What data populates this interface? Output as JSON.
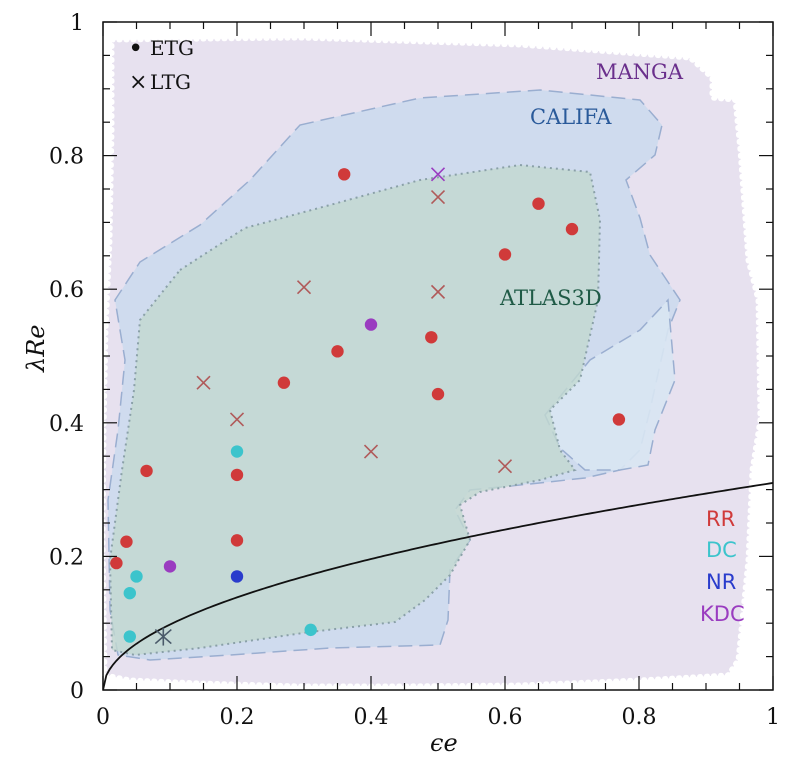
{
  "chart_data": {
    "type": "scatter",
    "title": "",
    "xlabel": "ϵe",
    "ylabel": "λRe",
    "xlim": [
      0,
      1
    ],
    "ylim": [
      0,
      1
    ],
    "x_ticks": [
      "0",
      "0.2",
      "0.4",
      "0.6",
      "0.8",
      "1"
    ],
    "y_ticks": [
      "0",
      "0.2",
      "0.4",
      "0.6",
      "0.8",
      "1"
    ],
    "colors": {
      "RR": "#d03a3a",
      "DC": "#3cc4cc",
      "NR": "#2a3ccc",
      "KDC": "#9a3cc0",
      "LTG": "#b05a5a",
      "curve": "#111111"
    },
    "regions": [
      {
        "name": "MANGA",
        "color": "#6a2f8c",
        "fill": "#e3dcec"
      },
      {
        "name": "CALIFA",
        "color": "#2a5a9a",
        "fill": "#c9d9ee"
      },
      {
        "name": "ATLAS3D",
        "color": "#1f5a46",
        "fill": "#c2d8d0"
      }
    ],
    "legend_shape": [
      {
        "marker": "•",
        "label": "ETG"
      },
      {
        "marker": "×",
        "label": "LTG"
      }
    ],
    "legend_kinematic": [
      "RR",
      "DC",
      "NR",
      "KDC"
    ],
    "series": [
      {
        "name": "RR",
        "marker": "circle",
        "points": [
          [
            0.02,
            0.19
          ],
          [
            0.035,
            0.222
          ],
          [
            0.065,
            0.328
          ],
          [
            0.2,
            0.322
          ],
          [
            0.2,
            0.224
          ],
          [
            0.27,
            0.46
          ],
          [
            0.35,
            0.507
          ],
          [
            0.36,
            0.772
          ],
          [
            0.49,
            0.528
          ],
          [
            0.5,
            0.443
          ],
          [
            0.6,
            0.652
          ],
          [
            0.65,
            0.728
          ],
          [
            0.7,
            0.69
          ],
          [
            0.77,
            0.405
          ]
        ]
      },
      {
        "name": "DC",
        "marker": "circle",
        "points": [
          [
            0.04,
            0.145
          ],
          [
            0.05,
            0.17
          ],
          [
            0.04,
            0.08
          ],
          [
            0.2,
            0.357
          ],
          [
            0.31,
            0.09
          ]
        ]
      },
      {
        "name": "NR",
        "marker": "circle",
        "points": [
          [
            0.2,
            0.17
          ]
        ]
      },
      {
        "name": "KDC",
        "marker": "circle",
        "points": [
          [
            0.1,
            0.185
          ],
          [
            0.4,
            0.547
          ]
        ]
      },
      {
        "name": "LTG-RR",
        "marker": "x",
        "points": [
          [
            0.15,
            0.46
          ],
          [
            0.2,
            0.405
          ],
          [
            0.3,
            0.603
          ],
          [
            0.4,
            0.357
          ],
          [
            0.5,
            0.738
          ],
          [
            0.5,
            0.596
          ],
          [
            0.6,
            0.335
          ]
        ]
      },
      {
        "name": "LTG-KDC",
        "marker": "x",
        "points": [
          [
            0.5,
            0.772
          ]
        ]
      },
      {
        "name": "LTG-NR",
        "marker": "asterisk",
        "points": [
          [
            0.09,
            0.08
          ]
        ]
      }
    ],
    "curve": {
      "label": "0.31·√ϵ",
      "coefficient": 0.31
    }
  }
}
